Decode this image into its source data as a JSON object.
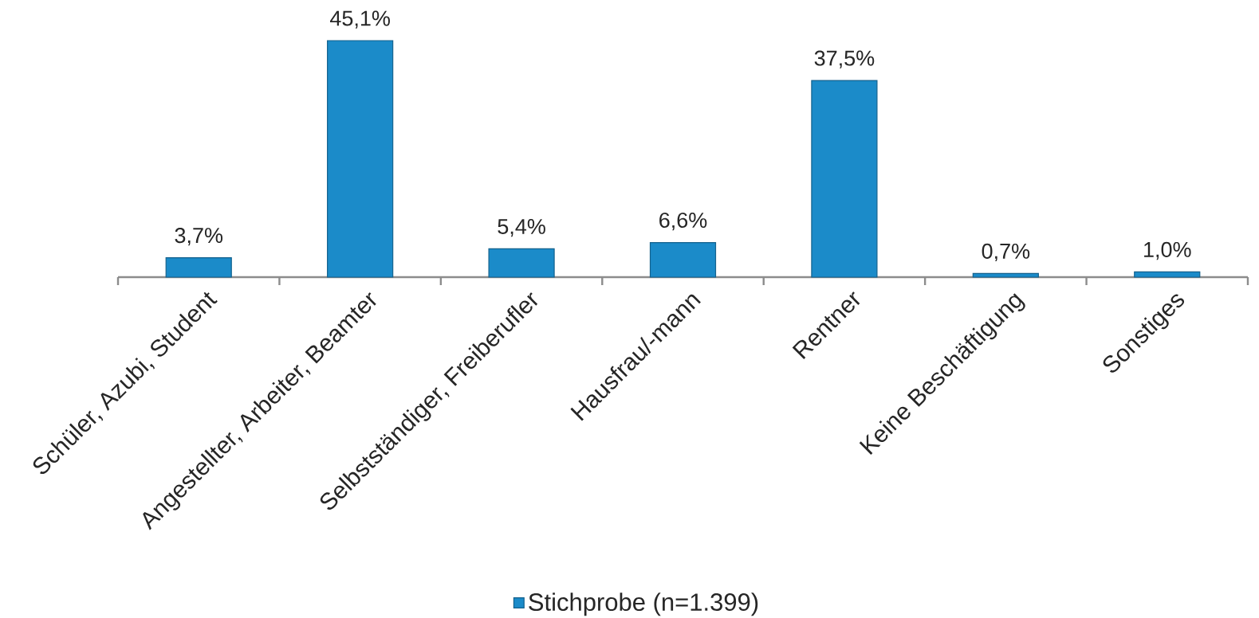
{
  "chart_data": {
    "type": "bar",
    "categories": [
      "Schüler, Azubi, Student",
      "Angestellter, Arbeiter, Beamter",
      "Selbstständiger, Freiberufler",
      "Hausfrau/-mann",
      "Rentner",
      "Keine Beschäftigung",
      "Sonstiges"
    ],
    "series": [
      {
        "name": "Stichprobe (n=1.399)",
        "color": "#1b8bc9",
        "values": [
          3.7,
          45.1,
          5.4,
          6.6,
          37.5,
          0.7,
          1.0
        ],
        "value_labels": [
          "3,7%",
          "45,1%",
          "5,4%",
          "6,6%",
          "37,5%",
          "0,7%",
          "1,0%"
        ]
      }
    ],
    "legend": "bottom"
  }
}
